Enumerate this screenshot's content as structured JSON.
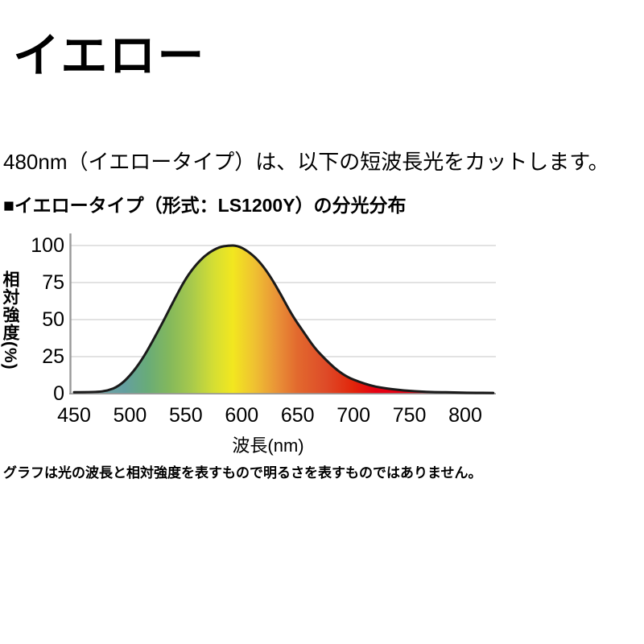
{
  "page": {
    "title": "イエロー",
    "description": "480nm（イエロータイプ）は、以下の短波長光をカットします。",
    "chart_heading": "■イエロータイプ（形式：LS1200Y）の分光分布",
    "footnote": "グラフは光の波長と相対強度を表すもので明るさを表すものではありません。"
  },
  "chart_data": {
    "type": "area",
    "title": "イエロータイプ（形式：LS1200Y）の分光分布",
    "xlabel": "波長(nm)",
    "ylabel": "相対強度(%)",
    "xlim": [
      450,
      828
    ],
    "ylim": [
      0,
      100
    ],
    "x_ticks": [
      450,
      500,
      550,
      600,
      650,
      700,
      750,
      800
    ],
    "y_ticks": [
      0,
      25,
      50,
      75,
      100
    ],
    "grid": "horizontal",
    "series": [
      {
        "name": "相対強度",
        "x": [
          450,
          470,
          480,
          490,
          500,
          510,
          520,
          530,
          540,
          550,
          560,
          570,
          580,
          588,
          596,
          605,
          615,
          625,
          635,
          645,
          655,
          665,
          675,
          685,
          695,
          705,
          715,
          725,
          735,
          745,
          755,
          765,
          775,
          790,
          805,
          825
        ],
        "y": [
          1,
          1,
          2,
          5,
          12,
          22,
          35,
          49,
          64,
          78,
          88,
          95,
          99,
          100,
          100,
          96.5,
          90,
          80,
          67,
          53,
          42,
          31,
          23,
          16,
          11,
          8,
          5.5,
          4,
          3,
          2.2,
          1.6,
          1.2,
          1,
          0.8,
          0.6,
          0.5
        ]
      }
    ],
    "gradient_stops": [
      {
        "nm": 450,
        "color": "#7FA8AD"
      },
      {
        "nm": 495,
        "color": "#649FA0"
      },
      {
        "nm": 515,
        "color": "#68AB79"
      },
      {
        "nm": 535,
        "color": "#83B85C"
      },
      {
        "nm": 555,
        "color": "#A7C94C"
      },
      {
        "nm": 575,
        "color": "#D5DE33"
      },
      {
        "nm": 592,
        "color": "#F2E71F"
      },
      {
        "nm": 612,
        "color": "#EFC032"
      },
      {
        "nm": 632,
        "color": "#E99137"
      },
      {
        "nm": 650,
        "color": "#E2692E"
      },
      {
        "nm": 675,
        "color": "#DE4B28"
      },
      {
        "nm": 700,
        "color": "#E2250B"
      },
      {
        "nm": 720,
        "color": "#E60012"
      },
      {
        "nm": 828,
        "color": "#E60012"
      }
    ],
    "curve_color": "#1a1a1a",
    "axis_color": "#999999",
    "grid_color": "#d9d9d9",
    "text_color": "#000000"
  }
}
